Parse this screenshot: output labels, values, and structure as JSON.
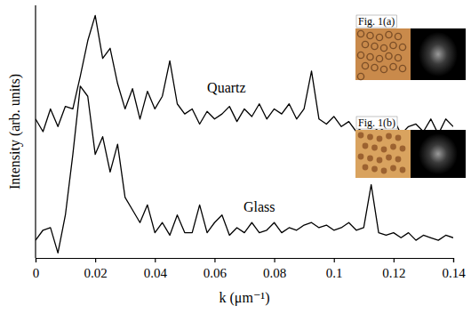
{
  "chart_data": {
    "type": "line",
    "x_label": "k (μm⁻¹)",
    "y_label": "Intensity (arb. units)",
    "x": [
      0,
      0.0025,
      0.005,
      0.0075,
      0.01,
      0.0125,
      0.015,
      0.0175,
      0.02,
      0.0225,
      0.025,
      0.0275,
      0.03,
      0.0325,
      0.035,
      0.0375,
      0.04,
      0.0425,
      0.045,
      0.0475,
      0.05,
      0.0525,
      0.055,
      0.0575,
      0.06,
      0.0625,
      0.065,
      0.0675,
      0.07,
      0.0725,
      0.075,
      0.0775,
      0.08,
      0.0825,
      0.085,
      0.0875,
      0.09,
      0.0925,
      0.095,
      0.0975,
      0.1,
      0.1025,
      0.105,
      0.1075,
      0.11,
      0.1125,
      0.115,
      0.1175,
      0.12,
      0.1225,
      0.125,
      0.1275,
      0.13,
      0.1325,
      0.135,
      0.1375,
      0.14
    ],
    "series": [
      {
        "name": "Quartz",
        "color": "#000000",
        "values": [
          55,
          50,
          59,
          52,
          60,
          59,
          72,
          86,
          96,
          79,
          83,
          69,
          59,
          67,
          55,
          66,
          59,
          64,
          78,
          61,
          57,
          59,
          53,
          58,
          55,
          57,
          60,
          54,
          59,
          56,
          61,
          55,
          59,
          57,
          61,
          55,
          59,
          74,
          55,
          53,
          56,
          52,
          54,
          50,
          52,
          53,
          50,
          52,
          55,
          49,
          52,
          53,
          50,
          55,
          49,
          55,
          52
        ]
      },
      {
        "name": "Glass",
        "color": "#000000",
        "values": [
          7,
          11,
          12,
          2,
          17,
          41,
          68,
          64,
          41,
          48,
          34,
          45,
          24,
          19,
          14,
          21,
          10,
          14,
          9,
          17,
          10,
          10,
          21,
          10,
          14,
          17,
          9,
          12,
          10,
          14,
          10,
          11,
          14,
          10,
          12,
          11,
          13,
          14,
          12,
          13,
          11,
          12,
          14,
          11,
          12,
          29,
          10,
          9,
          10,
          8,
          10,
          7,
          9,
          8,
          7,
          9,
          8
        ]
      }
    ],
    "xlim": [
      0,
      0.14
    ],
    "xticks": [
      0,
      0.02,
      0.04,
      0.06,
      0.08,
      0.1,
      0.12,
      0.14
    ],
    "ylim": [
      0,
      100
    ],
    "tick_labels": "x",
    "annotations": [
      "Fig. 1(a)",
      "Fig. 1(b)"
    ]
  }
}
